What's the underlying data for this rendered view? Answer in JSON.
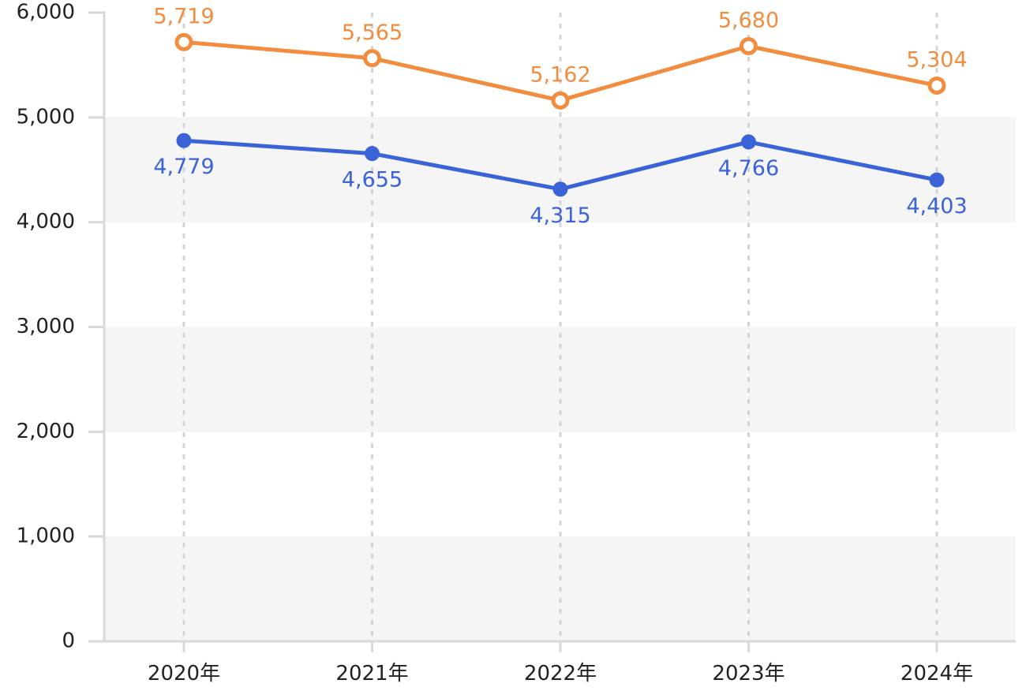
{
  "chart_data": {
    "type": "line",
    "categories": [
      "2020年",
      "2021年",
      "2022年",
      "2023年",
      "2024年"
    ],
    "series": [
      {
        "values": [
          5719,
          5565,
          5162,
          5680,
          5304
        ],
        "labels": [
          "5,719",
          "5,565",
          "5,162",
          "5,680",
          "5,304"
        ],
        "color": "#F28C3F",
        "marker": "hollow-circle",
        "label_position": "above"
      },
      {
        "values": [
          4779,
          4655,
          4315,
          4766,
          4403
        ],
        "labels": [
          "4,779",
          "4,655",
          "4,315",
          "4,766",
          "4,403"
        ],
        "color": "#3A63D8",
        "marker": "filled-circle",
        "label_position": "below"
      }
    ],
    "ylim": [
      0,
      6000
    ],
    "yticks": [
      0,
      1000,
      2000,
      3000,
      4000,
      5000,
      6000
    ],
    "ytick_labels": [
      "0",
      "1,000",
      "2,000",
      "3,000",
      "4,000",
      "5,000",
      "6,000"
    ],
    "title": "",
    "xlabel": "",
    "ylabel": "",
    "grid": "alternating horizontal bands with dashed vertical gridlines",
    "legend": "none",
    "colors": {
      "band": "#F5F5F5",
      "axis": "#D9D9D9",
      "vgrid": "#D4D4D4",
      "text": "#222222"
    }
  }
}
